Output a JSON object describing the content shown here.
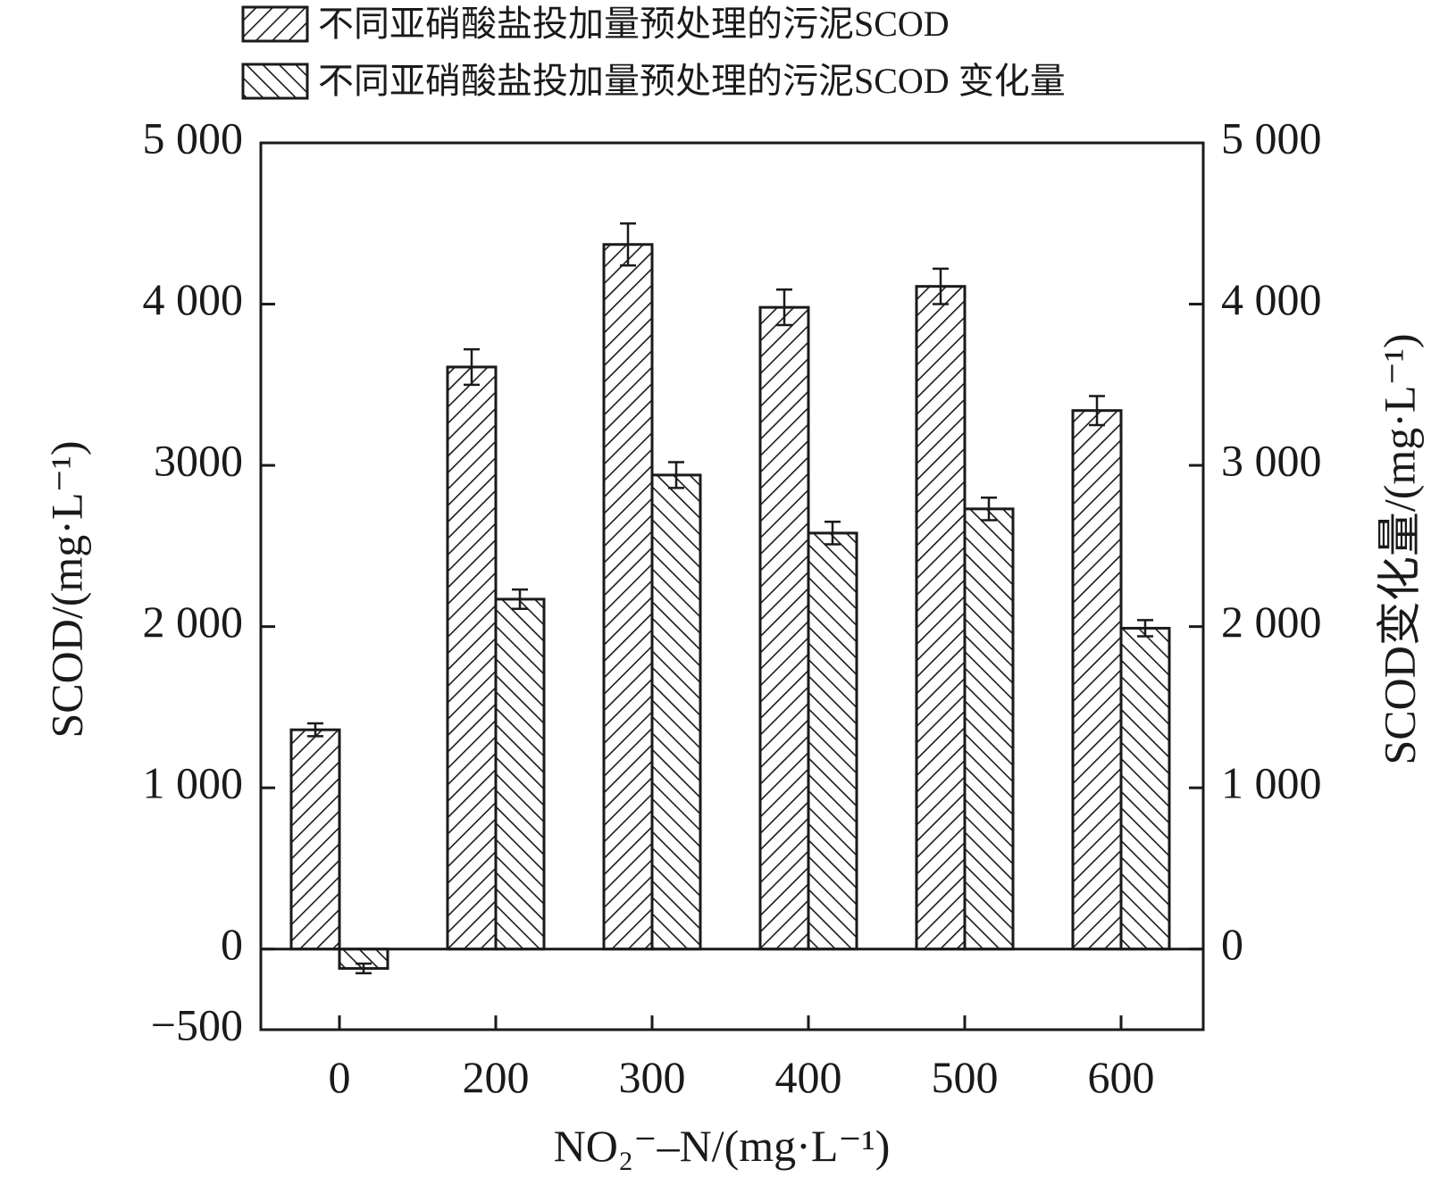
{
  "chart_data": {
    "type": "bar",
    "categories": [
      "0",
      "200",
      "300",
      "400",
      "500",
      "600"
    ],
    "series": [
      {
        "name": "不同亚硝酸盐投加量预处理的污泥SCOD",
        "values": [
          1360,
          3610,
          4370,
          3980,
          4110,
          3340
        ],
        "errors": [
          40,
          110,
          130,
          110,
          110,
          90
        ],
        "pattern": "hatch-forward"
      },
      {
        "name": "不同亚硝酸盐投加量预处理的污泥SCOD 变化量",
        "values": [
          -120,
          2170,
          2940,
          2580,
          2730,
          1990
        ],
        "errors": [
          30,
          60,
          80,
          70,
          70,
          50
        ],
        "pattern": "hatch-back"
      }
    ],
    "ylim": [
      -500,
      5000
    ],
    "y_ticks": [
      -500,
      0,
      1000,
      2000,
      3000,
      4000,
      5000
    ],
    "y_tick_labels": [
      "−500",
      "0",
      "1 000",
      "2 000",
      "3000",
      "4 000",
      "5 000"
    ],
    "y2_ticks": [
      0,
      1000,
      2000,
      3000,
      4000,
      5000
    ],
    "y2_tick_labels": [
      "0",
      "1 000",
      "2 000",
      "3 000",
      "4 000",
      "5 000"
    ],
    "ylabel": "SCOD/(mg·L⁻¹)",
    "y2label": "SCOD变化量/(mg·L⁻¹)",
    "xlabel": "NO₂⁻–N/(mg·L⁻¹)",
    "grid": false,
    "legend_position": "top"
  },
  "colors": {
    "ink": "#1a1a1a",
    "background": "#ffffff"
  }
}
